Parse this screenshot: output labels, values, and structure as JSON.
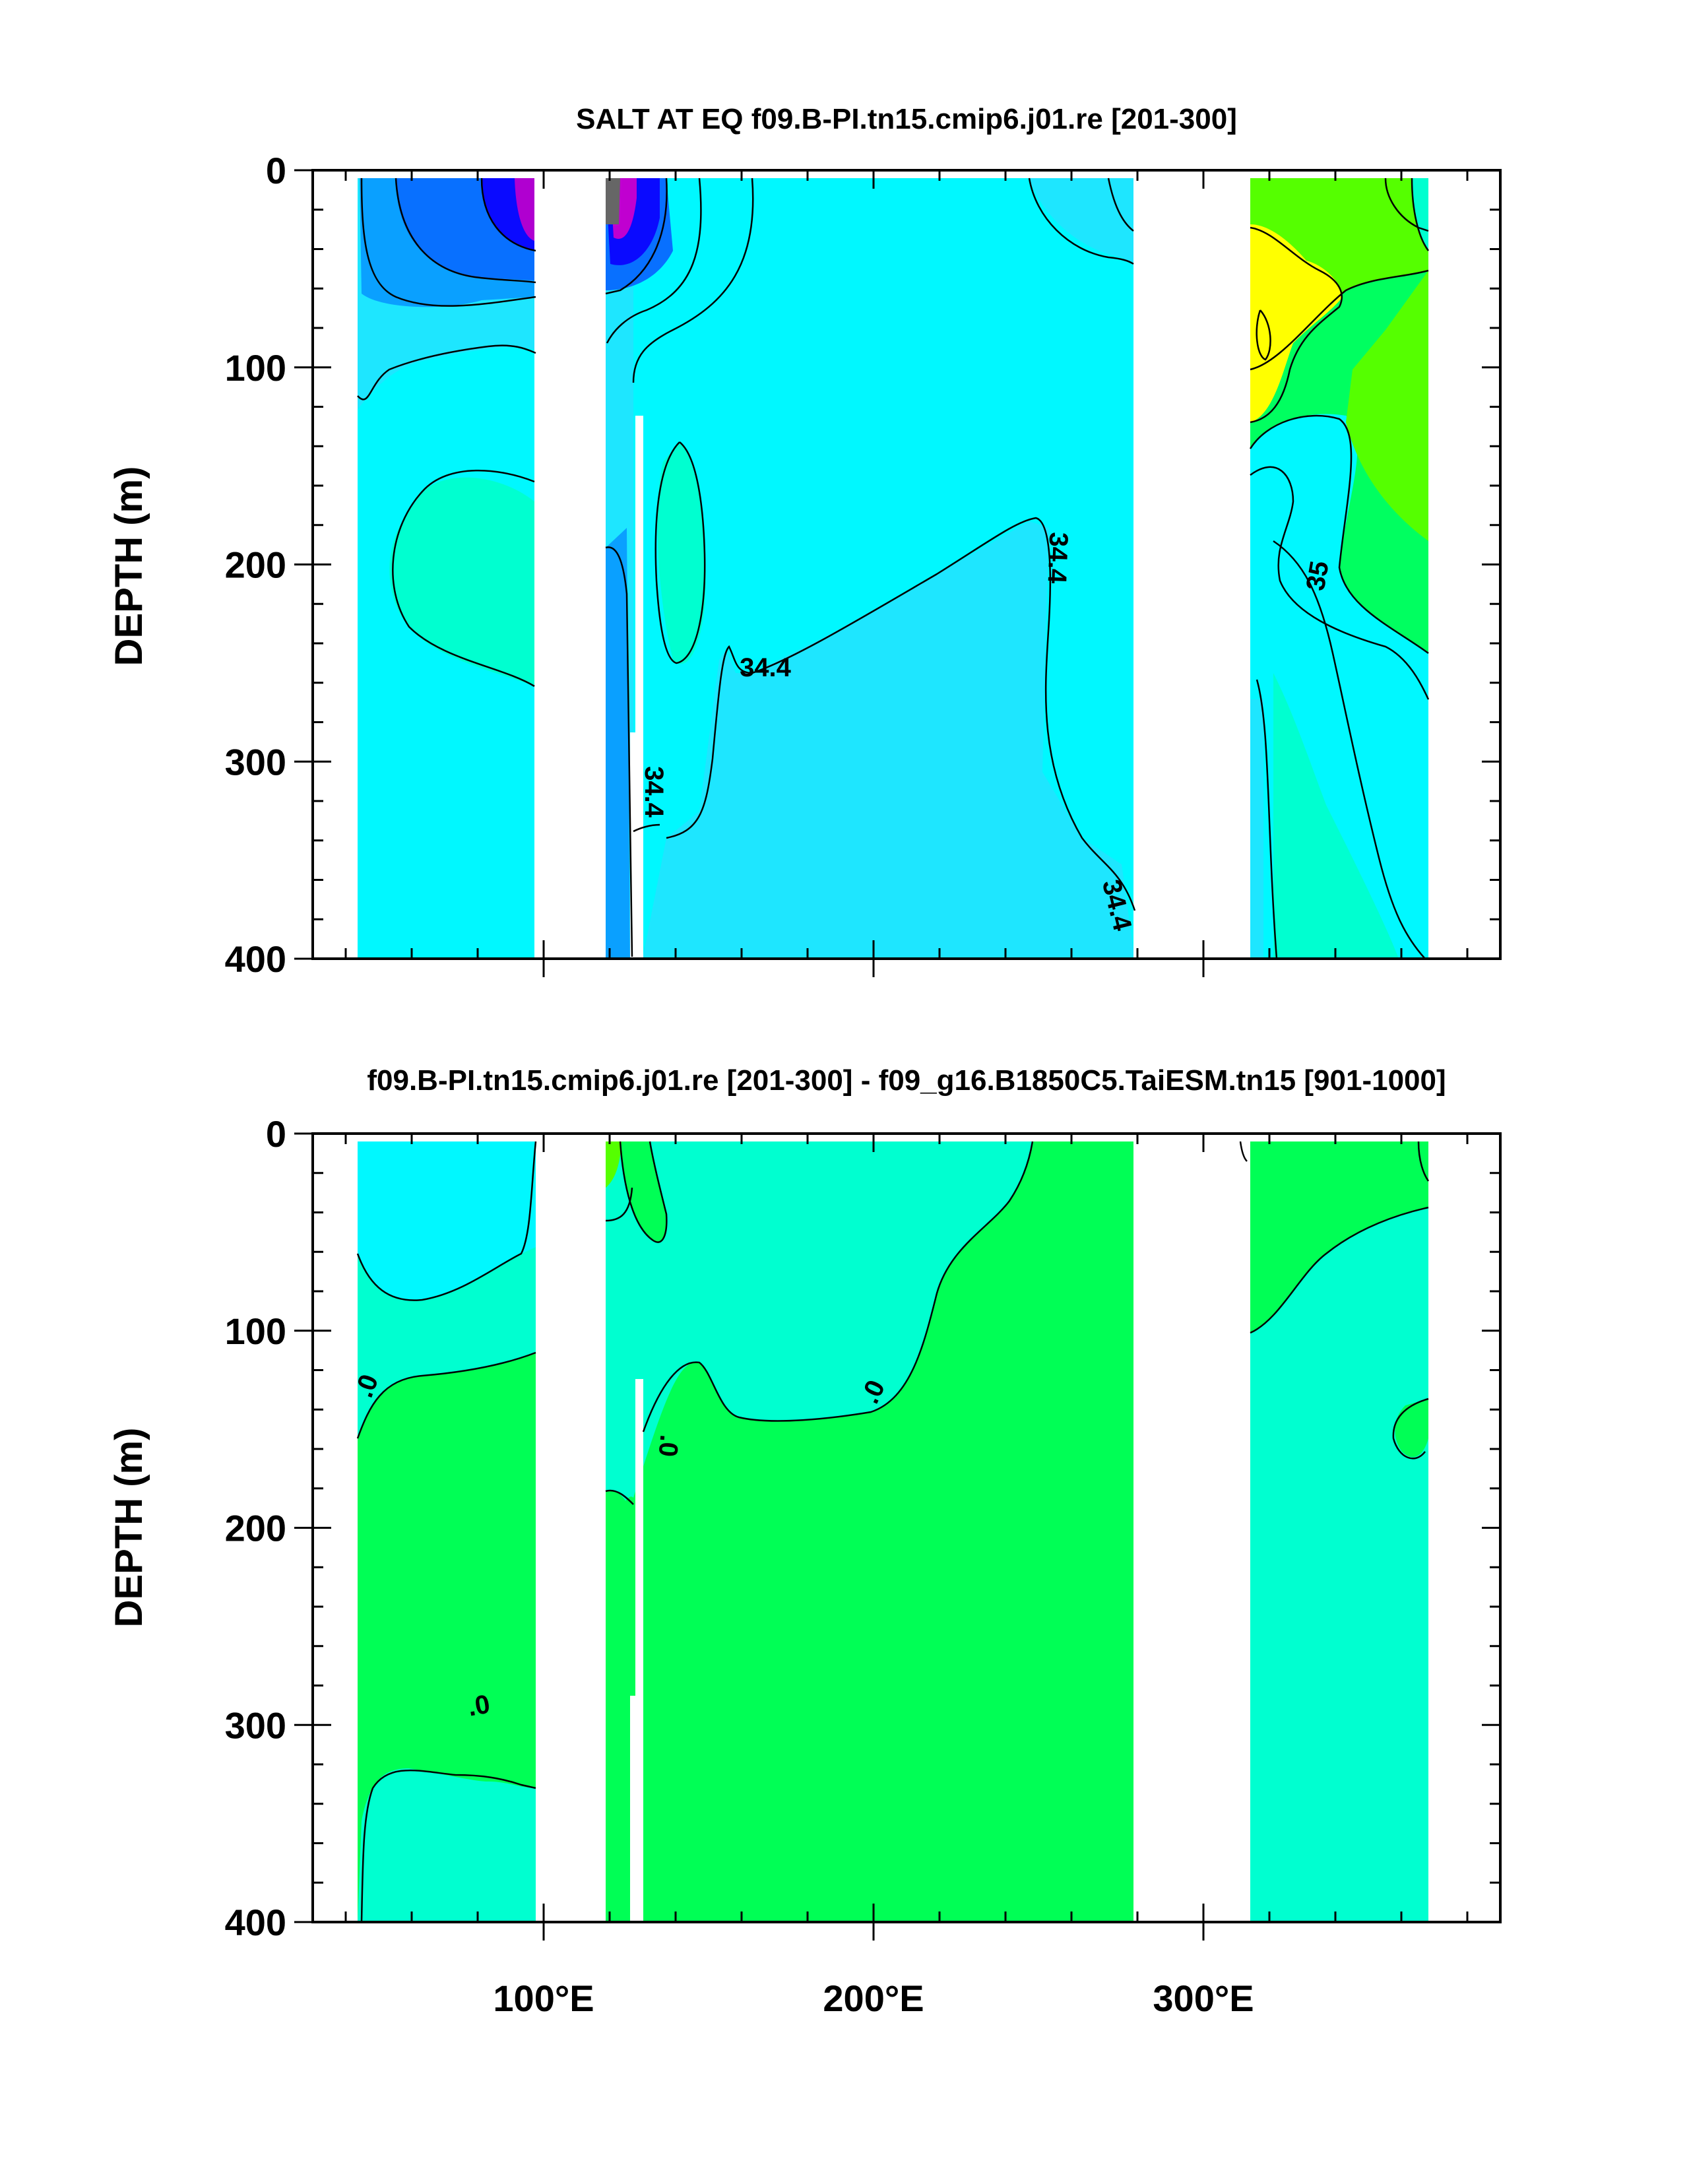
{
  "chart_data": [
    {
      "type": "heatmap",
      "title": "SALT AT EQ f09.B-PI.tn15.cmip6.j01.re [201-300]",
      "ylabel": "DEPTH (m)",
      "xlabel": "",
      "ylim": [
        0,
        400
      ],
      "y_inverted": true,
      "xlim": [
        30,
        390
      ],
      "y_ticks": [
        "0",
        "100",
        "200",
        "300",
        "400"
      ],
      "x_ticks": [
        "100°E",
        "200°E",
        "300°E"
      ],
      "x_tick_values": [
        100,
        200,
        300
      ],
      "contour_labels": [
        {
          "text": "34.4",
          "x": 158,
          "y": 252
        },
        {
          "text": "34.4",
          "x": 253,
          "y": 198
        },
        {
          "text": "34.4",
          "x": 133,
          "y": 315
        },
        {
          "text": "34.4",
          "x": 280,
          "y": 380
        },
        {
          "text": "35",
          "x": 346,
          "y": 205
        }
      ],
      "colors": {
        "c33": "#b000d0",
        "c335": "#0a0aff",
        "c34": "#0066ff",
        "c342": "#0099ff",
        "c344": "#00ddff",
        "c345": "#00f8ff",
        "c347": "#00ffd0",
        "c35": "#00ff70",
        "c355": "#44ff00",
        "c36": "#ffff00",
        "grey": "#777777"
      }
    },
    {
      "type": "heatmap",
      "title": "f09.B-PI.tn15.cmip6.j01.re [201-300] - f09_g16.B1850C5.TaiESM.tn15 [901-1000]",
      "ylabel": "DEPTH (m)",
      "xlabel": "",
      "ylim": [
        0,
        400
      ],
      "y_inverted": true,
      "xlim": [
        30,
        390
      ],
      "y_ticks": [
        "0",
        "100",
        "200",
        "300",
        "400"
      ],
      "x_ticks": [
        "100°E",
        "200°E",
        "300°E"
      ],
      "x_tick_values": [
        100,
        200,
        300
      ],
      "contour_labels": [
        {
          "text": ".0",
          "x": 50,
          "y": 130
        },
        {
          "text": ".0",
          "x": 135,
          "y": 165
        },
        {
          "text": ".0",
          "x": 205,
          "y": 135
        },
        {
          "text": ".0",
          "x": 82,
          "y": 298
        }
      ],
      "colors": {
        "neg": "#00ffff",
        "zero": "#00ffd0",
        "pos": "#00ff55",
        "pos2": "#55ff00"
      }
    }
  ]
}
